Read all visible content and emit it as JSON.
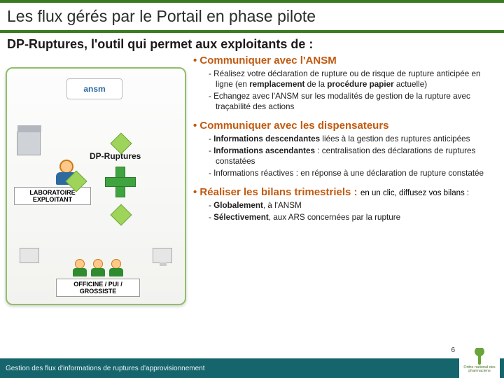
{
  "title": "Les flux gérés par le Portail en phase pilote",
  "subtitle": "DP-Ruptures, l'outil qui permet aux exploitants de :",
  "colors": {
    "header_border": "#3a7b1f",
    "section_head": "#c05a10",
    "footer_bg": "#16656d",
    "diagram_border": "#8fbf6a",
    "cross_green": "#3fa33f"
  },
  "diagram": {
    "ansm_label": "ansm",
    "center_label": "DP-Ruptures",
    "lab_label": "LABORATOIRE EXPLOITANT",
    "officine_label": "OFFICINE / PUI / GROSSISTE"
  },
  "sections": [
    {
      "head": "Communiquer avec l'ANSM",
      "items": [
        "Réalisez votre déclaration de rupture ou de risque de rupture anticipée en ligne (en <b>remplacement</b> de la <b>procédure papier</b> actuelle)",
        "Echangez avec l'ANSM sur les modalités de gestion de la rupture avec traçabilité des actions"
      ]
    },
    {
      "head": "Communiquer avec les dispensateurs",
      "items": [
        "<b>Informations descendantes</b> liées à la gestion des ruptures anticipées",
        "<b>Informations ascendantes</b> : centralisation des déclarations de ruptures constatées",
        "Informations réactives : en réponse à une déclaration de rupture constatée"
      ]
    },
    {
      "head": "Réaliser les bilans trimestriels :",
      "head_note": "en un clic, diffusez vos bilans :",
      "items": [
        "<b>Globalement</b>, à l'ANSM",
        "<b>Sélectivement</b>, aux ARS concernées par la rupture"
      ]
    }
  ],
  "footer": "Gestion des flux d'informations de ruptures d'approvisionnement",
  "logo_text": "Ordre national des pharmaciens",
  "page_number": "6"
}
